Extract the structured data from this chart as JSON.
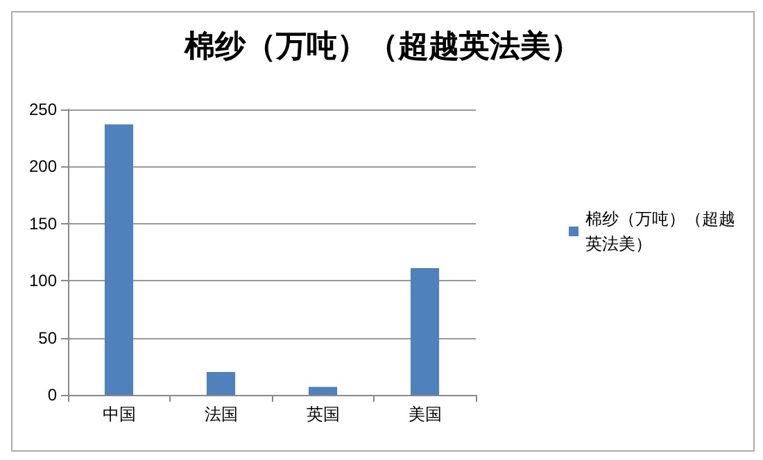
{
  "chart_data": {
    "type": "bar",
    "title": "棉纱（万吨）（超越英法美）",
    "categories": [
      "中国",
      "法国",
      "英国",
      "美国"
    ],
    "series": [
      {
        "name": "棉纱（万吨）（超越英法美）",
        "color": "#4f81bd",
        "values": [
          237,
          20,
          7,
          111
        ]
      }
    ],
    "ylim": [
      0,
      250
    ],
    "yticks": [
      0,
      50,
      100,
      150,
      200,
      250
    ],
    "grid": "y",
    "legend": "right"
  }
}
